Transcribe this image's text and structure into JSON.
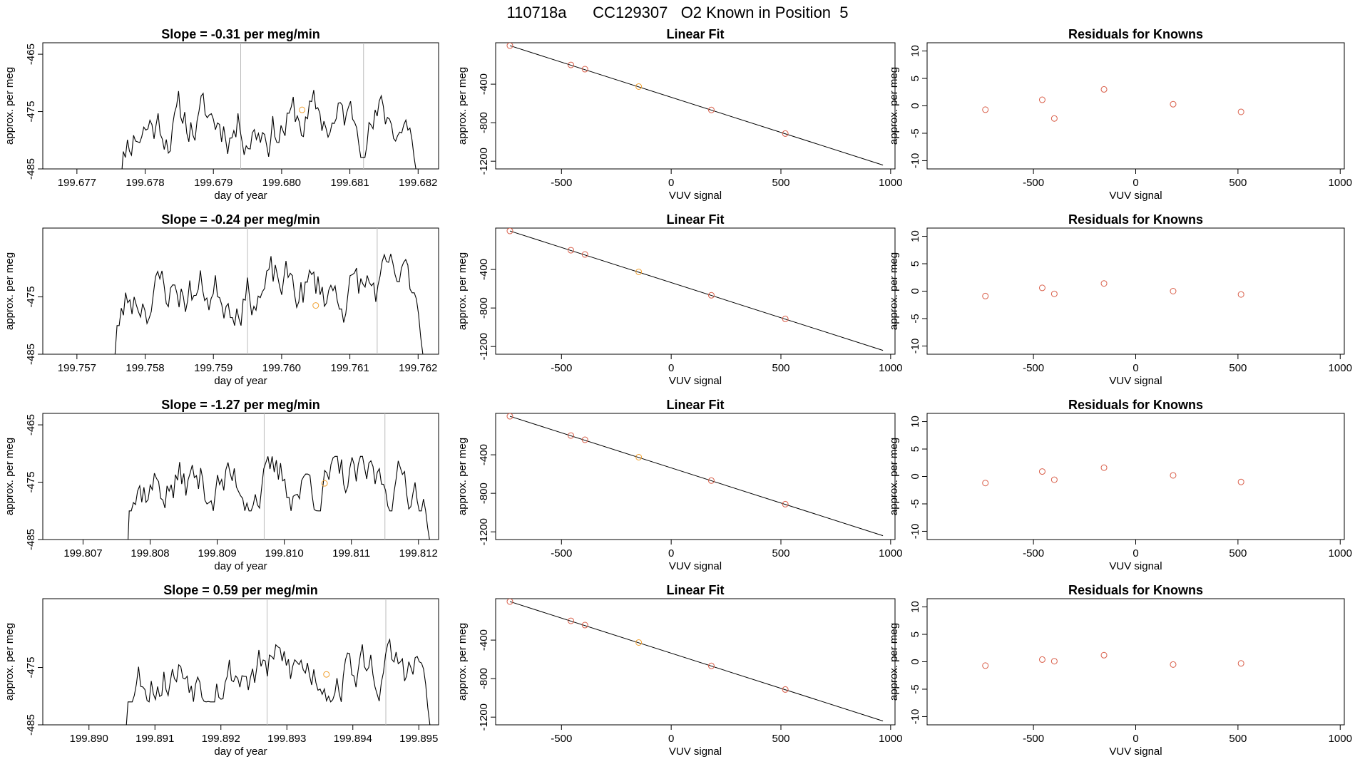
{
  "main_title": "110718a      CC129307   O2 Known in Position  5",
  "colors": {
    "line": "#000000",
    "red_point": "#d95f4a",
    "orange_point": "#f0a030",
    "vline": "#bbbbbb"
  },
  "chart_data": [
    {
      "type": "line",
      "row": 1,
      "title": "Slope =  -0.31  per meg/min",
      "xlabel": "day of year",
      "ylabel": "approx. per meg",
      "x_ticks": [
        "199.677",
        "199.678",
        "199.679",
        "199.680",
        "199.681",
        "199.682"
      ],
      "y_ticks": [
        "-465",
        "-475",
        "-485"
      ],
      "xlim": [
        199.6765,
        199.6823
      ],
      "ylim": [
        -485,
        -463
      ],
      "vlines": [
        199.6794,
        199.6812
      ],
      "highlight_point": {
        "x": 199.6803,
        "y": -474.7
      },
      "series": [
        {
          "x_start": 199.6775,
          "x_end": 199.682,
          "seed": 11,
          "y_start": -486,
          "y_end": -486,
          "y_min": -483,
          "y_max": -470.5
        }
      ]
    },
    {
      "type": "scatter",
      "row": 1,
      "title": "Linear Fit",
      "xlabel": "VUV signal",
      "ylabel": "approx. per meg",
      "x_ticks": [
        "-500",
        "0",
        "500",
        "1000"
      ],
      "y_ticks": [
        "-400",
        "-800",
        "-1200"
      ],
      "xlim": [
        -800,
        1020
      ],
      "ylim": [
        -1280,
        30
      ],
      "fit_line": {
        "x": [
          -735,
          965
        ],
        "y": [
          0,
          -1240
        ]
      },
      "points": [
        {
          "x": -735,
          "y": 0,
          "color": "red"
        },
        {
          "x": -457,
          "y": -200,
          "color": "red"
        },
        {
          "x": -393,
          "y": -244,
          "color": "red"
        },
        {
          "x": -148,
          "y": -425,
          "color": "orange"
        },
        {
          "x": 183,
          "y": -668,
          "color": "red"
        },
        {
          "x": 520,
          "y": -913,
          "color": "red"
        }
      ]
    },
    {
      "type": "scatter",
      "row": 1,
      "title": "Residuals for Knowns",
      "xlabel": "VUV signal",
      "ylabel": "approx. per meg",
      "x_ticks": [
        "-500",
        "0",
        "500",
        "1000"
      ],
      "y_ticks": [
        "10",
        "5",
        "0",
        "-5",
        "-10"
      ],
      "xlim": [
        -1020,
        1020
      ],
      "ylim": [
        -11.5,
        11.5
      ],
      "points": [
        {
          "x": -735,
          "y": -0.7,
          "color": "red"
        },
        {
          "x": -457,
          "y": 1.1,
          "color": "red"
        },
        {
          "x": -398,
          "y": -2.3,
          "color": "red"
        },
        {
          "x": -155,
          "y": 3.0,
          "color": "red"
        },
        {
          "x": 183,
          "y": 0.3,
          "color": "red"
        },
        {
          "x": 515,
          "y": -1.1,
          "color": "red"
        }
      ]
    },
    {
      "type": "line",
      "row": 2,
      "title": "Slope =  -0.24  per meg/min",
      "xlabel": "day of year",
      "ylabel": "approx. per meg",
      "x_ticks": [
        "199.757",
        "199.758",
        "199.759",
        "199.760",
        "199.761",
        "199.762"
      ],
      "y_ticks": [
        "-475",
        "-485"
      ],
      "xlim": [
        199.7565,
        199.7623
      ],
      "ylim": [
        -485,
        -463
      ],
      "vlines": [
        199.7595,
        199.7614
      ],
      "highlight_point": {
        "x": 199.7605,
        "y": -476.5
      },
      "series": [
        {
          "x_start": 199.7574,
          "x_end": 199.7621,
          "seed": 23,
          "y_start": -486,
          "y_end": -486,
          "y_min": -480,
          "y_max": -467.5
        }
      ]
    },
    {
      "type": "scatter",
      "row": 2,
      "title": "Linear Fit",
      "xlabel": "VUV signal",
      "ylabel": "approx. per meg",
      "x_ticks": [
        "-500",
        "0",
        "500",
        "1000"
      ],
      "y_ticks": [
        "-400",
        "-800",
        "-1200"
      ],
      "xlim": [
        -800,
        1020
      ],
      "ylim": [
        -1280,
        30
      ],
      "fit_line": {
        "x": [
          -735,
          965
        ],
        "y": [
          0,
          -1240
        ]
      },
      "points": [
        {
          "x": -735,
          "y": 0,
          "color": "red"
        },
        {
          "x": -457,
          "y": -200,
          "color": "red"
        },
        {
          "x": -393,
          "y": -244,
          "color": "red"
        },
        {
          "x": -148,
          "y": -425,
          "color": "orange"
        },
        {
          "x": 183,
          "y": -668,
          "color": "red"
        },
        {
          "x": 520,
          "y": -913,
          "color": "red"
        }
      ]
    },
    {
      "type": "scatter",
      "row": 2,
      "title": "Residuals for Knowns",
      "xlabel": "VUV signal",
      "ylabel": "approx. per meg",
      "x_ticks": [
        "-500",
        "0",
        "500",
        "1000"
      ],
      "y_ticks": [
        "10",
        "5",
        "0",
        "-5",
        "-10"
      ],
      "xlim": [
        -1020,
        1020
      ],
      "ylim": [
        -11.5,
        11.5
      ],
      "points": [
        {
          "x": -735,
          "y": -0.9,
          "color": "red"
        },
        {
          "x": -457,
          "y": 0.6,
          "color": "red"
        },
        {
          "x": -398,
          "y": -0.5,
          "color": "red"
        },
        {
          "x": -155,
          "y": 1.4,
          "color": "red"
        },
        {
          "x": 183,
          "y": 0.0,
          "color": "red"
        },
        {
          "x": 515,
          "y": -0.6,
          "color": "red"
        }
      ]
    },
    {
      "type": "line",
      "row": 3,
      "title": "Slope =  -1.27  per meg/min",
      "xlabel": "day of year",
      "ylabel": "approx. per meg",
      "x_ticks": [
        "199.807",
        "199.808",
        "199.809",
        "199.810",
        "199.811",
        "199.812"
      ],
      "y_ticks": [
        "-465",
        "-475",
        "-485"
      ],
      "xlim": [
        199.8064,
        199.8123
      ],
      "ylim": [
        -485,
        -463
      ],
      "vlines": [
        199.8097,
        199.8115
      ],
      "highlight_point": {
        "x": 199.8106,
        "y": -475.2
      },
      "series": [
        {
          "x_start": 199.8075,
          "x_end": 199.8122,
          "seed": 37,
          "y_start": -486,
          "y_end": -486,
          "y_min": -480,
          "y_max": -470.5
        }
      ]
    },
    {
      "type": "scatter",
      "row": 3,
      "title": "Linear Fit",
      "xlabel": "VUV signal",
      "ylabel": "approx. per meg",
      "x_ticks": [
        "-500",
        "0",
        "500",
        "1000"
      ],
      "y_ticks": [
        "-400",
        "-800",
        "-1200"
      ],
      "xlim": [
        -800,
        1020
      ],
      "ylim": [
        -1280,
        30
      ],
      "fit_line": {
        "x": [
          -735,
          965
        ],
        "y": [
          0,
          -1240
        ]
      },
      "points": [
        {
          "x": -735,
          "y": 0,
          "color": "red"
        },
        {
          "x": -457,
          "y": -200,
          "color": "red"
        },
        {
          "x": -393,
          "y": -244,
          "color": "red"
        },
        {
          "x": -148,
          "y": -425,
          "color": "orange"
        },
        {
          "x": 183,
          "y": -668,
          "color": "red"
        },
        {
          "x": 520,
          "y": -913,
          "color": "red"
        }
      ]
    },
    {
      "type": "scatter",
      "row": 3,
      "title": "Residuals for Knowns",
      "xlabel": "VUV signal",
      "ylabel": "approx. per meg",
      "x_ticks": [
        "-500",
        "0",
        "500",
        "1000"
      ],
      "y_ticks": [
        "10",
        "5",
        "0",
        "-5",
        "-10"
      ],
      "xlim": [
        -1020,
        1020
      ],
      "ylim": [
        -11.5,
        11.5
      ],
      "points": [
        {
          "x": -735,
          "y": -1.2,
          "color": "red"
        },
        {
          "x": -457,
          "y": 0.9,
          "color": "red"
        },
        {
          "x": -398,
          "y": -0.6,
          "color": "red"
        },
        {
          "x": -155,
          "y": 1.6,
          "color": "red"
        },
        {
          "x": 183,
          "y": 0.2,
          "color": "red"
        },
        {
          "x": 515,
          "y": -1.0,
          "color": "red"
        }
      ]
    },
    {
      "type": "line",
      "row": 4,
      "title": "Slope =  0.59  per meg/min",
      "xlabel": "day of year",
      "ylabel": "approx. per meg",
      "x_ticks": [
        "199.890",
        "199.891",
        "199.892",
        "199.893",
        "199.894",
        "199.895"
      ],
      "y_ticks": [
        "-475",
        "-485"
      ],
      "xlim": [
        199.8893,
        199.8953
      ],
      "ylim": [
        -485,
        -463
      ],
      "vlines": [
        199.8927,
        199.8945
      ],
      "highlight_point": {
        "x": 199.8936,
        "y": -476.2
      },
      "series": [
        {
          "x_start": 199.8904,
          "x_end": 199.8952,
          "seed": 53,
          "y_start": -486,
          "y_end": -486,
          "y_min": -481,
          "y_max": -470
        }
      ]
    },
    {
      "type": "scatter",
      "row": 4,
      "title": "Linear Fit",
      "xlabel": "VUV signal",
      "ylabel": "approx. per meg",
      "x_ticks": [
        "-500",
        "0",
        "500",
        "1000"
      ],
      "y_ticks": [
        "-400",
        "-800",
        "-1200"
      ],
      "xlim": [
        -800,
        1020
      ],
      "ylim": [
        -1280,
        30
      ],
      "fit_line": {
        "x": [
          -735,
          965
        ],
        "y": [
          0,
          -1240
        ]
      },
      "points": [
        {
          "x": -735,
          "y": 0,
          "color": "red"
        },
        {
          "x": -457,
          "y": -200,
          "color": "red"
        },
        {
          "x": -393,
          "y": -244,
          "color": "red"
        },
        {
          "x": -148,
          "y": -425,
          "color": "orange"
        },
        {
          "x": 183,
          "y": -668,
          "color": "red"
        },
        {
          "x": 520,
          "y": -913,
          "color": "red"
        }
      ]
    },
    {
      "type": "scatter",
      "row": 4,
      "title": "Residuals for Knowns",
      "xlabel": "VUV signal",
      "ylabel": "approx. per meg",
      "x_ticks": [
        "-500",
        "0",
        "500",
        "1000"
      ],
      "y_ticks": [
        "10",
        "5",
        "0",
        "-5",
        "-10"
      ],
      "xlim": [
        -1020,
        1020
      ],
      "ylim": [
        -11.5,
        11.5
      ],
      "points": [
        {
          "x": -735,
          "y": -0.7,
          "color": "red"
        },
        {
          "x": -457,
          "y": 0.4,
          "color": "red"
        },
        {
          "x": -398,
          "y": 0.1,
          "color": "red"
        },
        {
          "x": -155,
          "y": 1.2,
          "color": "red"
        },
        {
          "x": 183,
          "y": -0.5,
          "color": "red"
        },
        {
          "x": 515,
          "y": -0.3,
          "color": "red"
        }
      ]
    }
  ]
}
